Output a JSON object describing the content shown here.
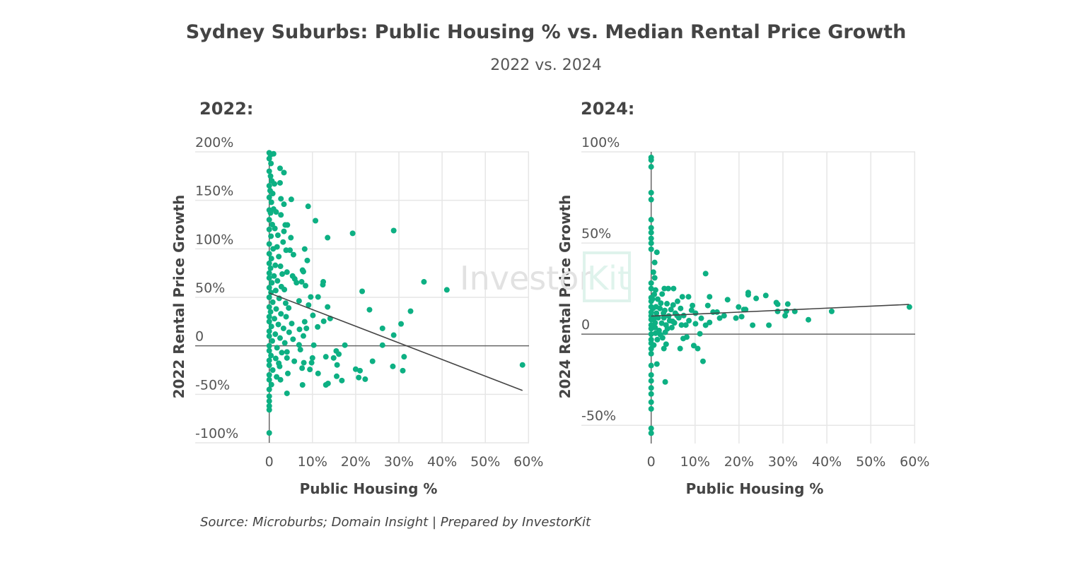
{
  "title": "Sydney Suburbs: Public Housing % vs. Median Rental Price Growth",
  "subtitle": "2022 vs. 2024",
  "source": "Source: Microburbs; Domain Insight | Prepared by InvestorKit",
  "watermark": {
    "part1": "Investor",
    "part2": "Kit"
  },
  "colors": {
    "points": "#0db083",
    "trendline": "#444444",
    "grid": "#e6e6e6",
    "zero_line": "#666666"
  },
  "chart_data": [
    {
      "type": "scatter",
      "panel_title": "2022:",
      "xlabel": "Public Housing %",
      "ylabel": "2022 Rental Price Growth",
      "xlim": [
        -17,
        60
      ],
      "ylim": [
        -100,
        200
      ],
      "x_ticks": [
        {
          "v": 0,
          "label": "0"
        },
        {
          "v": 10,
          "label": "10%"
        },
        {
          "v": 20,
          "label": "20%"
        },
        {
          "v": 30,
          "label": "30%"
        },
        {
          "v": 40,
          "label": "40%"
        },
        {
          "v": 50,
          "label": "50%"
        },
        {
          "v": 60,
          "label": "60%"
        }
      ],
      "y_ticks": [
        {
          "v": 200,
          "label": "200%"
        },
        {
          "v": 150,
          "label": "150%"
        },
        {
          "v": 100,
          "label": "100%"
        },
        {
          "v": 50,
          "label": "50%"
        },
        {
          "v": 0,
          "label": "0"
        },
        {
          "v": -50,
          "label": "-50%"
        },
        {
          "v": -100,
          "label": "-100%"
        }
      ],
      "grid": true,
      "trendline": {
        "x": [
          0,
          58.6
        ],
        "y": [
          54.5,
          -46
        ]
      },
      "points": [
        [
          2.5,
          183
        ],
        [
          3.4,
          178.6
        ],
        [
          2.5,
          168
        ],
        [
          5.1,
          151
        ],
        [
          2.7,
          151.6
        ],
        [
          3.4,
          146
        ],
        [
          9.0,
          143.8
        ],
        [
          10.7,
          129
        ],
        [
          2.7,
          135
        ],
        [
          19.3,
          116
        ],
        [
          28.8,
          118.8
        ],
        [
          13.5,
          111.5
        ],
        [
          3.7,
          124.6
        ],
        [
          4.2,
          124.6
        ],
        [
          3.4,
          118
        ],
        [
          5.0,
          111.5
        ],
        [
          3.2,
          107
        ],
        [
          8.2,
          99.8
        ],
        [
          3.9,
          98.6
        ],
        [
          4.8,
          98.6
        ],
        [
          5.6,
          94
        ],
        [
          8.8,
          88
        ],
        [
          4.1,
          76
        ],
        [
          7.7,
          78
        ],
        [
          7.9,
          76.5
        ],
        [
          5.4,
          72
        ],
        [
          5.9,
          69
        ],
        [
          6.3,
          65.1
        ],
        [
          7.5,
          66
        ],
        [
          8.4,
          62
        ],
        [
          12.5,
          66
        ],
        [
          12.4,
          63
        ],
        [
          35.8,
          66
        ],
        [
          41.1,
          57.7
        ],
        [
          21.5,
          56.2
        ],
        [
          9.6,
          50.4
        ],
        [
          11.3,
          50.4
        ],
        [
          6.9,
          46.3
        ],
        [
          13.5,
          40.1
        ],
        [
          23.2,
          37.2
        ],
        [
          32.7,
          35.7
        ],
        [
          9.1,
          42
        ],
        [
          10.1,
          31.4
        ],
        [
          14.1,
          28.2
        ],
        [
          12.6,
          25.3
        ],
        [
          8.2,
          24.8
        ],
        [
          8.6,
          18
        ],
        [
          11.2,
          19.5
        ],
        [
          7.0,
          17
        ],
        [
          26.2,
          18
        ],
        [
          30.5,
          22.6
        ],
        [
          28.8,
          11
        ],
        [
          7.9,
          10.2
        ],
        [
          17.5,
          0.7
        ],
        [
          26.2,
          0.7
        ],
        [
          10.3,
          0.7
        ],
        [
          6.9,
          1
        ],
        [
          7.2,
          -3.9
        ],
        [
          4.1,
          -6.3
        ],
        [
          5.5,
          6.8
        ],
        [
          15.5,
          -5.3
        ],
        [
          16.1,
          -8.6
        ],
        [
          13.1,
          -11.3
        ],
        [
          14.9,
          -12.5
        ],
        [
          31.2,
          -11.3
        ],
        [
          23.9,
          -15.9
        ],
        [
          10.0,
          -12.5
        ],
        [
          9.8,
          -17.4
        ],
        [
          8.0,
          -17.4
        ],
        [
          5.8,
          -15.9
        ],
        [
          4.1,
          -12.5
        ],
        [
          15.7,
          -19.7
        ],
        [
          7.6,
          -23
        ],
        [
          9.4,
          -24.4
        ],
        [
          11.3,
          -28.5
        ],
        [
          20.0,
          -24.1
        ],
        [
          21.0,
          -25.6
        ],
        [
          28.6,
          -21.2
        ],
        [
          30.9,
          -25.6
        ],
        [
          58.6,
          -19.7
        ],
        [
          4.3,
          -28.5
        ],
        [
          15.6,
          -31.4
        ],
        [
          16.8,
          -35.8
        ],
        [
          20.7,
          -32.7
        ],
        [
          22.2,
          -34.4
        ],
        [
          13.1,
          -40.3
        ],
        [
          13.6,
          -38.8
        ],
        [
          7.7,
          -40.3
        ],
        [
          4.1,
          -49
        ],
        [
          2.4,
          -21.2
        ],
        [
          2.6,
          -35
        ],
        [
          0,
          -89.8
        ],
        [
          0,
          199
        ],
        [
          0.3,
          197
        ],
        [
          1.0,
          198
        ],
        [
          0,
          193
        ],
        [
          0.4,
          188
        ],
        [
          0,
          180
        ],
        [
          0.3,
          175
        ],
        [
          0.6,
          170
        ],
        [
          0,
          165
        ],
        [
          1.2,
          167
        ],
        [
          0.2,
          160
        ],
        [
          0.8,
          157
        ],
        [
          0,
          153
        ],
        [
          0.5,
          148
        ],
        [
          0,
          140
        ],
        [
          1.0,
          141
        ],
        [
          0.3,
          137
        ],
        [
          1.6,
          138
        ],
        [
          0,
          130
        ],
        [
          0.7,
          125
        ],
        [
          0,
          120
        ],
        [
          1.3,
          121
        ],
        [
          0.4,
          113
        ],
        [
          2.0,
          114
        ],
        [
          0,
          105
        ],
        [
          0.9,
          100
        ],
        [
          1.8,
          102
        ],
        [
          0,
          95
        ],
        [
          0.5,
          90
        ],
        [
          2.2,
          92
        ],
        [
          0,
          85
        ],
        [
          1.4,
          83
        ],
        [
          0.3,
          80
        ],
        [
          2.6,
          82
        ],
        [
          0,
          75
        ],
        [
          1.1,
          72
        ],
        [
          3.0,
          74
        ],
        [
          0,
          70
        ],
        [
          0.6,
          65
        ],
        [
          1.9,
          67
        ],
        [
          0,
          60
        ],
        [
          2.8,
          61
        ],
        [
          0.4,
          55
        ],
        [
          1.5,
          57
        ],
        [
          3.5,
          58
        ],
        [
          0,
          50
        ],
        [
          2.3,
          49
        ],
        [
          0.8,
          45
        ],
        [
          3.8,
          44
        ],
        [
          0,
          40
        ],
        [
          1.6,
          38
        ],
        [
          4.5,
          39
        ],
        [
          0.3,
          35
        ],
        [
          2.7,
          33
        ],
        [
          0,
          30
        ],
        [
          1.2,
          28
        ],
        [
          3.9,
          30
        ],
        [
          0,
          25
        ],
        [
          2.1,
          22
        ],
        [
          5.2,
          23
        ],
        [
          0.5,
          20
        ],
        [
          3.3,
          18
        ],
        [
          0,
          15
        ],
        [
          1.4,
          12
        ],
        [
          4.6,
          14
        ],
        [
          0,
          10
        ],
        [
          2.5,
          8
        ],
        [
          0.7,
          5
        ],
        [
          3.6,
          3
        ],
        [
          0,
          0
        ],
        [
          1.8,
          -2
        ],
        [
          0,
          -5
        ],
        [
          2.9,
          -7
        ],
        [
          0.4,
          -10
        ],
        [
          1.5,
          -13
        ],
        [
          0,
          -15
        ],
        [
          2.2,
          -18
        ],
        [
          0,
          -20
        ],
        [
          0.8,
          -25
        ],
        [
          0,
          -30
        ],
        [
          1.7,
          -32
        ],
        [
          0,
          -35
        ],
        [
          0.5,
          -40
        ],
        [
          0,
          -45
        ],
        [
          0,
          -52
        ],
        [
          0,
          -57
        ],
        [
          0,
          -62
        ],
        [
          0,
          -66
        ]
      ]
    },
    {
      "type": "scatter",
      "panel_title": "2024:",
      "xlabel": "Public Housing %",
      "ylabel": "2024 Rental Price Growth",
      "xlim": [
        -16,
        60
      ],
      "ylim": [
        -60,
        100
      ],
      "x_ticks": [
        {
          "v": 0,
          "label": "0"
        },
        {
          "v": 10,
          "label": "10%"
        },
        {
          "v": 20,
          "label": "20%"
        },
        {
          "v": 30,
          "label": "30%"
        },
        {
          "v": 40,
          "label": "40%"
        },
        {
          "v": 50,
          "label": "50%"
        },
        {
          "v": 60,
          "label": "60%"
        }
      ],
      "y_ticks": [
        {
          "v": 100,
          "label": "100%"
        },
        {
          "v": 50,
          "label": "50%"
        },
        {
          "v": 0,
          "label": "0"
        },
        {
          "v": -50,
          "label": "-50%"
        }
      ],
      "grid": true,
      "trendline": {
        "x": [
          0,
          58.7
        ],
        "y": [
          9.9,
          16.3
        ]
      },
      "points": [
        [
          0,
          96.9
        ],
        [
          0,
          95.5
        ],
        [
          0,
          91.8
        ],
        [
          0,
          77.6
        ],
        [
          0,
          73.8
        ],
        [
          0,
          62.8
        ],
        [
          0,
          58.3
        ],
        [
          0,
          55.7
        ],
        [
          0,
          52.5
        ],
        [
          0,
          49.9
        ],
        [
          0,
          46.6
        ],
        [
          1.3,
          44.9
        ],
        [
          0.8,
          39.3
        ],
        [
          0.5,
          34
        ],
        [
          0.8,
          30.9
        ],
        [
          12.4,
          33.2
        ],
        [
          1.0,
          24.2
        ],
        [
          3.0,
          25
        ],
        [
          3.9,
          25
        ],
        [
          5.1,
          25
        ],
        [
          2.5,
          22
        ],
        [
          7.1,
          20.5
        ],
        [
          8.5,
          20.5
        ],
        [
          13.3,
          20.5
        ],
        [
          17.4,
          18.9
        ],
        [
          22.1,
          22.8
        ],
        [
          22.1,
          21.6
        ],
        [
          23.9,
          19.6
        ],
        [
          26.1,
          21.2
        ],
        [
          28.5,
          17.3
        ],
        [
          28.8,
          16.4
        ],
        [
          31.1,
          16.5
        ],
        [
          12.9,
          15.7
        ],
        [
          19.9,
          14.9
        ],
        [
          21.1,
          13.5
        ],
        [
          21.5,
          13.5
        ],
        [
          28.8,
          12.5
        ],
        [
          30.8,
          12.6
        ],
        [
          32.7,
          12.5
        ],
        [
          41.1,
          12.5
        ],
        [
          58.8,
          14.9
        ],
        [
          30.5,
          10.1
        ],
        [
          35.8,
          7.9
        ],
        [
          23.1,
          4.9
        ],
        [
          26.8,
          4.9
        ],
        [
          19.3,
          8.8
        ],
        [
          20.6,
          9.6
        ],
        [
          15.6,
          8.8
        ],
        [
          16.6,
          10.1
        ],
        [
          15.0,
          12.1
        ],
        [
          11.4,
          8.7
        ],
        [
          10.1,
          5.7
        ],
        [
          12.4,
          4.9
        ],
        [
          13.3,
          6.4
        ],
        [
          11.1,
          0.2
        ],
        [
          7.3,
          -2.4
        ],
        [
          8.1,
          -1.6
        ],
        [
          6.6,
          -7.9
        ],
        [
          9.7,
          -6.3
        ],
        [
          10.6,
          -7.9
        ],
        [
          11.8,
          -14.9
        ],
        [
          2.9,
          -7.9
        ],
        [
          3.4,
          -5.5
        ],
        [
          1.3,
          -16.4
        ],
        [
          3.2,
          -26.2
        ],
        [
          0,
          -22.4
        ],
        [
          0,
          -25.6
        ],
        [
          0,
          -29.5
        ],
        [
          0,
          -32.8
        ],
        [
          0,
          -37.3
        ],
        [
          0,
          -41
        ],
        [
          0,
          -51.7
        ],
        [
          0,
          -54.3
        ],
        [
          0,
          -10.7
        ],
        [
          0,
          -17.2
        ],
        [
          8.6,
          7.4
        ],
        [
          7.9,
          5.0
        ],
        [
          5.9,
          10.2
        ],
        [
          6.7,
          14.1
        ],
        [
          9.4,
          15.7
        ],
        [
          9.2,
          13.1
        ],
        [
          5.3,
          6.2
        ],
        [
          4.2,
          7.4
        ],
        [
          4.7,
          3.6
        ],
        [
          3.2,
          1.0
        ],
        [
          2.1,
          -0.3
        ],
        [
          1.5,
          19.2
        ],
        [
          2.0,
          14.1
        ],
        [
          2.8,
          11.5
        ],
        [
          3.6,
          16.7
        ],
        [
          4.5,
          13.5
        ],
        [
          5.5,
          11.5
        ],
        [
          6.3,
          9.0
        ],
        [
          7.4,
          10.2
        ],
        [
          10.1,
          11.5
        ],
        [
          14.1,
          12.1
        ],
        [
          6.9,
          5.0
        ],
        [
          3.4,
          5.0
        ],
        [
          0.9,
          3.6
        ],
        [
          0.7,
          8.8
        ],
        [
          0.4,
          14.1
        ],
        [
          0.3,
          19.2
        ],
        [
          0.7,
          21.8
        ],
        [
          1.2,
          11.5
        ],
        [
          0.9,
          6.2
        ],
        [
          0,
          0
        ],
        [
          0,
          3
        ],
        [
          0,
          5
        ],
        [
          0,
          8
        ],
        [
          0,
          10
        ],
        [
          0,
          12
        ],
        [
          0,
          15
        ],
        [
          0,
          18
        ],
        [
          0,
          20
        ],
        [
          0,
          25
        ],
        [
          0,
          28
        ],
        [
          0,
          -3
        ],
        [
          0,
          -5
        ],
        [
          0,
          -8
        ],
        [
          1.8,
          2
        ],
        [
          2.4,
          6
        ],
        [
          1.6,
          9
        ],
        [
          2.2,
          17
        ],
        [
          1.1,
          15
        ],
        [
          3.1,
          13
        ],
        [
          4.0,
          10
        ],
        [
          5.0,
          16
        ],
        [
          6.0,
          18
        ],
        [
          1.4,
          -3
        ],
        [
          2.6,
          -2
        ],
        [
          0.6,
          -6
        ],
        [
          1.0,
          0.5
        ],
        [
          2.9,
          9
        ],
        [
          3.7,
          3
        ],
        [
          4.9,
          7
        ]
      ]
    }
  ]
}
